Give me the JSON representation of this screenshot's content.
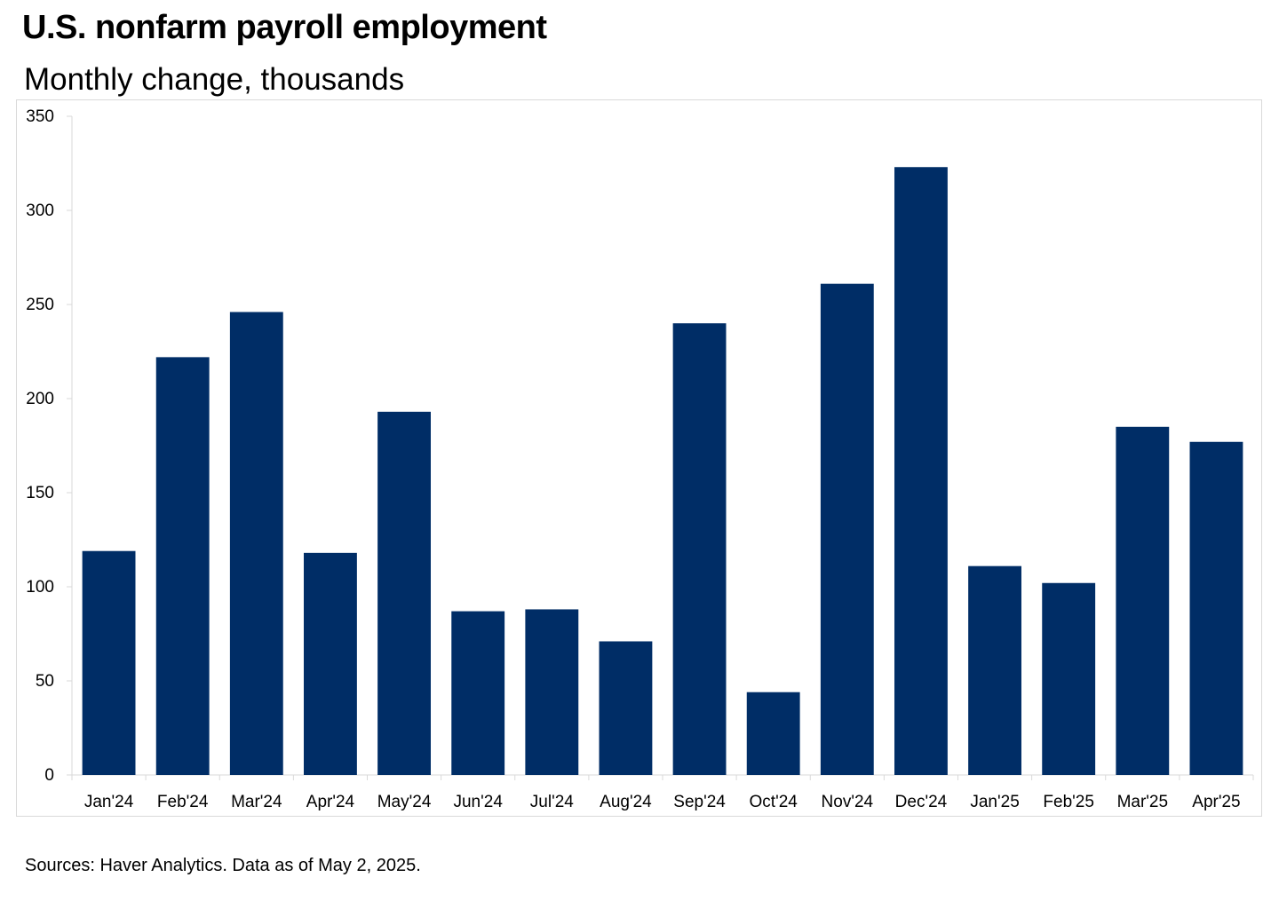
{
  "header": {
    "title": "U.S. nonfarm payroll employment",
    "subtitle": "Monthly change, thousands"
  },
  "footer": {
    "source": "Sources: Haver Analytics. Data as of May 2, 2025."
  },
  "colors": {
    "bar": "#002d66",
    "axis": "#d9d9d9"
  },
  "chart_data": {
    "type": "bar",
    "title": "U.S. nonfarm payroll employment",
    "subtitle": "Monthly change, thousands",
    "xlabel": "",
    "ylabel": "",
    "categories": [
      "Jan'24",
      "Feb'24",
      "Mar'24",
      "Apr'24",
      "May'24",
      "Jun'24",
      "Jul'24",
      "Aug'24",
      "Sep'24",
      "Oct'24",
      "Nov'24",
      "Dec'24",
      "Jan'25",
      "Feb'25",
      "Mar'25",
      "Apr'25"
    ],
    "values": [
      119,
      222,
      246,
      118,
      193,
      87,
      88,
      71,
      240,
      44,
      261,
      323,
      111,
      102,
      185,
      177
    ],
    "ylim": [
      0,
      350
    ],
    "yticks": [
      0,
      50,
      100,
      150,
      200,
      250,
      300,
      350
    ],
    "grid": false,
    "legend": "none"
  }
}
